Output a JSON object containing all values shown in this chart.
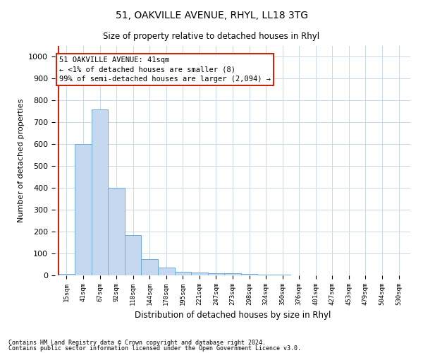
{
  "title": "51, OAKVILLE AVENUE, RHYL, LL18 3TG",
  "subtitle": "Size of property relative to detached houses in Rhyl",
  "xlabel": "Distribution of detached houses by size in Rhyl",
  "ylabel": "Number of detached properties",
  "footer_line1": "Contains HM Land Registry data © Crown copyright and database right 2024.",
  "footer_line2": "Contains public sector information licensed under the Open Government Licence v3.0.",
  "categories": [
    "15sqm",
    "41sqm",
    "67sqm",
    "92sqm",
    "118sqm",
    "144sqm",
    "170sqm",
    "195sqm",
    "221sqm",
    "247sqm",
    "273sqm",
    "298sqm",
    "324sqm",
    "350sqm",
    "376sqm",
    "401sqm",
    "427sqm",
    "453sqm",
    "479sqm",
    "504sqm",
    "530sqm"
  ],
  "bar_values": [
    8,
    600,
    760,
    400,
    185,
    75,
    35,
    15,
    12,
    10,
    10,
    5,
    3,
    2,
    1,
    1,
    0,
    0,
    0,
    0,
    0
  ],
  "bar_color": "#c5d8f0",
  "bar_edge_color": "#6aaed6",
  "highlight_bar_index": 1,
  "highlight_color": "#c5280c",
  "ylim": [
    0,
    1050
  ],
  "yticks": [
    0,
    100,
    200,
    300,
    400,
    500,
    600,
    700,
    800,
    900,
    1000
  ],
  "annotation_title": "51 OAKVILLE AVENUE: 41sqm",
  "annotation_line1": "← <1% of detached houses are smaller (8)",
  "annotation_line2": "99% of semi-detached houses are larger (2,094) →",
  "grid_color": "#c8d8e8",
  "background_color": "#ffffff"
}
